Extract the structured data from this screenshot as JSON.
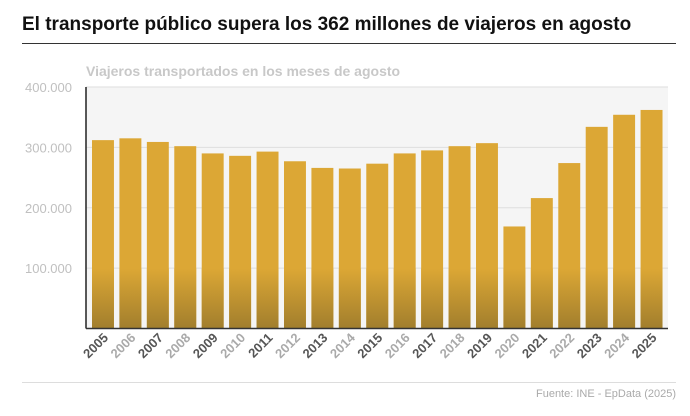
{
  "header": {
    "title": "El transporte público supera los 362 millones de viajeros en agosto"
  },
  "footer": {
    "source": "Fuente: INE - EpData (2025)"
  },
  "chart_data": {
    "type": "bar",
    "title": "Viajeros transportados en los meses de agosto",
    "xlabel": "",
    "ylabel": "",
    "categories": [
      "2005",
      "2006",
      "2007",
      "2008",
      "2009",
      "2010",
      "2011",
      "2012",
      "2013",
      "2014",
      "2015",
      "2016",
      "2017",
      "2018",
      "2019",
      "2020",
      "2021",
      "2022",
      "2023",
      "2024",
      "2025"
    ],
    "values": [
      312000,
      315000,
      309000,
      302000,
      290000,
      286000,
      293000,
      277000,
      266000,
      265000,
      273000,
      290000,
      295000,
      302000,
      307000,
      169000,
      216000,
      274000,
      334000,
      354000,
      362000
    ],
    "ylim": [
      0,
      400000
    ],
    "yticks": [
      100000,
      200000,
      300000,
      400000
    ],
    "ytick_labels": [
      "100.000",
      "200.000",
      "300.000",
      "400.000"
    ],
    "grid": true,
    "colors": {
      "bar": "#dca735",
      "bar_base": "#9b7a2c",
      "plot_bg": "#f5f5f5"
    }
  }
}
